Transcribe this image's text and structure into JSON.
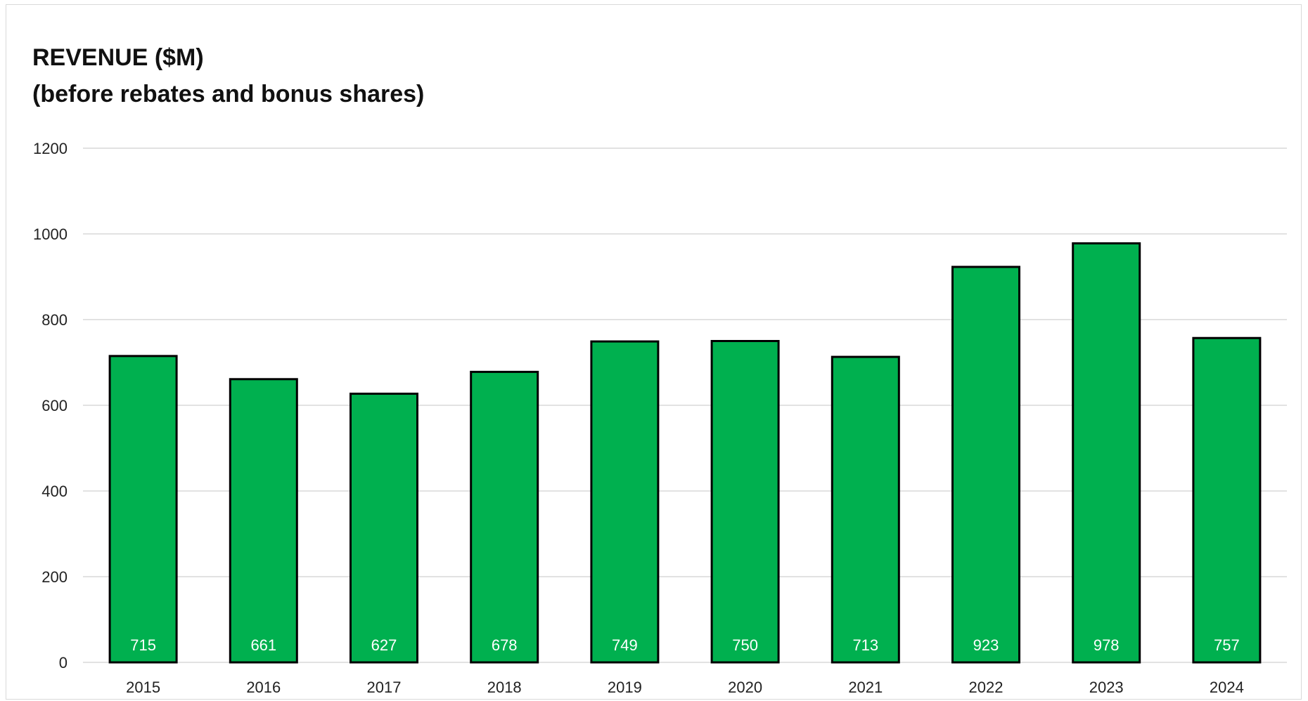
{
  "chart_data": {
    "type": "bar",
    "title": "REVENUE ($M)",
    "subtitle": "(before rebates and bonus shares)",
    "categories": [
      "2015",
      "2016",
      "2017",
      "2018",
      "2019",
      "2020",
      "2021",
      "2022",
      "2023",
      "2024"
    ],
    "values": [
      715,
      661,
      627,
      678,
      749,
      750,
      713,
      923,
      978,
      757
    ],
    "data_labels": [
      "715",
      "661",
      "627",
      "678",
      "749",
      "750",
      "713",
      "923",
      "978",
      "757"
    ],
    "y_ticks": [
      "0",
      "200",
      "400",
      "600",
      "800",
      "1000",
      "1200"
    ],
    "ylim": [
      0,
      1200
    ],
    "grid": true,
    "legend": "none",
    "bar_color": "#00b04f",
    "bar_outline": "#000000"
  }
}
